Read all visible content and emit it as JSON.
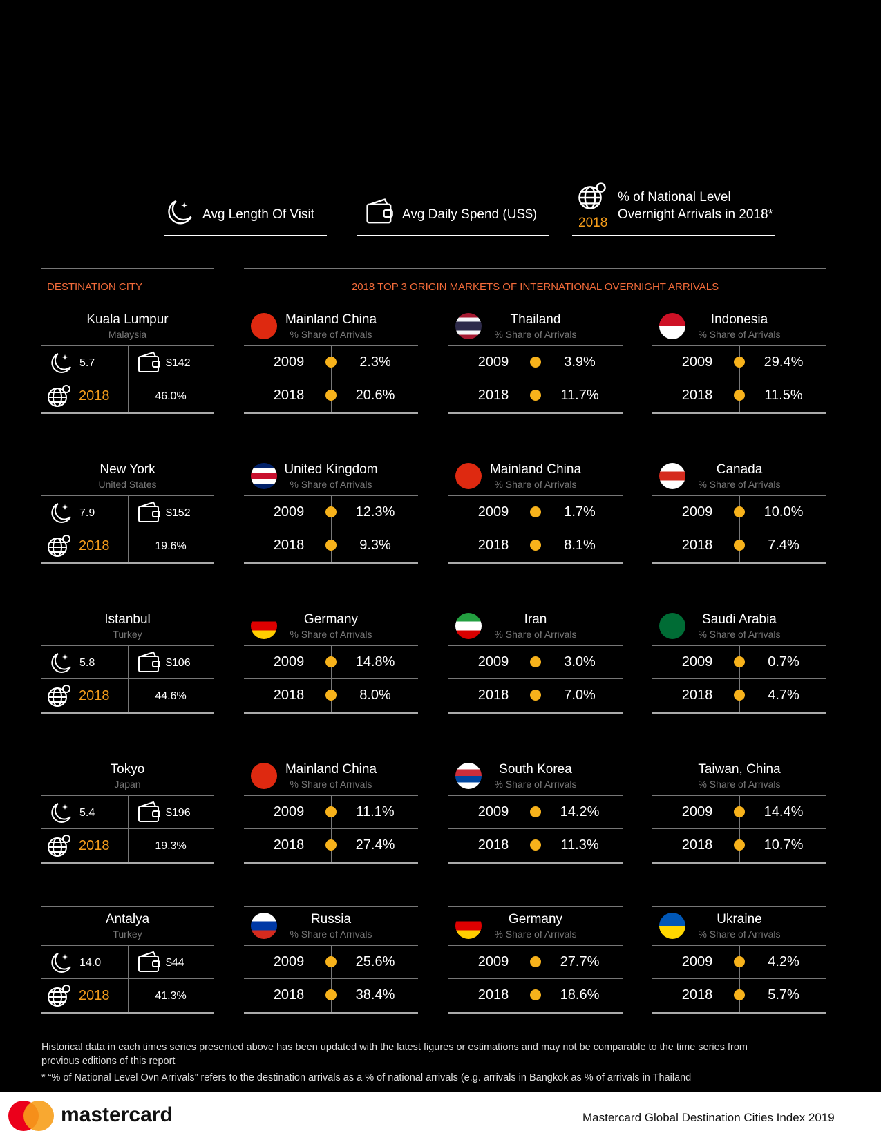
{
  "legend": {
    "items": [
      {
        "label": "Avg Length Of Visit"
      },
      {
        "label": "Avg Daily Spend (US$)"
      },
      {
        "year": "2018",
        "lines": [
          "% of National Level",
          "Overnight Arrivals in 2018*"
        ]
      }
    ]
  },
  "headers": {
    "destination": "DESTINATION CITY",
    "markets": "2018 TOP 3 ORIGIN MARKETS OF INTERNATIONAL OVERNIGHT ARRIVALS"
  },
  "cities": [
    {
      "name": "Kuala Lumpur",
      "country": "Malaysia",
      "length": "5.7",
      "spend": "$142",
      "year": "2018",
      "share": "46.0%",
      "markets": [
        {
          "name": "Mainland China",
          "subtitle": "% Share of Arrivals",
          "flag": [
            "#de2910"
          ],
          "rows": [
            {
              "year": "2009",
              "value": "2.3%"
            },
            {
              "year": "2018",
              "value": "20.6%"
            }
          ]
        },
        {
          "name": "Thailand",
          "subtitle": "% Share of Arrivals",
          "flag": [
            "#a51931",
            "#f4f5f8",
            "#2d2a4a",
            "#2d2a4a",
            "#f4f5f8",
            "#a51931"
          ],
          "rows": [
            {
              "year": "2009",
              "value": "3.9%"
            },
            {
              "year": "2018",
              "value": "11.7%"
            }
          ]
        },
        {
          "name": "Indonesia",
          "subtitle": "% Share of Arrivals",
          "flag": [
            "#ce1126",
            "#ffffff"
          ],
          "rows": [
            {
              "year": "2009",
              "value": "29.4%"
            },
            {
              "year": "2018",
              "value": "11.5%"
            }
          ]
        }
      ]
    },
    {
      "name": "New York",
      "country": "United States",
      "length": "7.9",
      "spend": "$152",
      "year": "2018",
      "share": "19.6%",
      "markets": [
        {
          "name": "United Kingdom",
          "subtitle": "% Share of Arrivals",
          "flag": [
            "#012169",
            "#ffffff",
            "#c8102e",
            "#ffffff",
            "#012169"
          ],
          "rows": [
            {
              "year": "2009",
              "value": "12.3%"
            },
            {
              "year": "2018",
              "value": "9.3%"
            }
          ]
        },
        {
          "name": "Mainland China",
          "subtitle": "% Share of Arrivals",
          "flag": [
            "#de2910"
          ],
          "rows": [
            {
              "year": "2009",
              "value": "1.7%"
            },
            {
              "year": "2018",
              "value": "8.1%"
            }
          ]
        },
        {
          "name": "Canada",
          "subtitle": "% Share of Arrivals",
          "flag": [
            "#ffffff",
            "#d52b1e",
            "#ffffff"
          ],
          "rows": [
            {
              "year": "2009",
              "value": "10.0%"
            },
            {
              "year": "2018",
              "value": "7.4%"
            }
          ]
        }
      ]
    },
    {
      "name": "Istanbul",
      "country": "Turkey",
      "length": "5.8",
      "spend": "$106",
      "year": "2018",
      "share": "44.6%",
      "markets": [
        {
          "name": "Germany",
          "subtitle": "% Share of Arrivals",
          "flag": [
            "#000000",
            "#dd0000",
            "#ffce00"
          ],
          "rows": [
            {
              "year": "2009",
              "value": "14.8%"
            },
            {
              "year": "2018",
              "value": "8.0%"
            }
          ]
        },
        {
          "name": "Iran",
          "subtitle": "% Share of Arrivals",
          "flag": [
            "#239f40",
            "#ffffff",
            "#da0000"
          ],
          "rows": [
            {
              "year": "2009",
              "value": "3.0%"
            },
            {
              "year": "2018",
              "value": "7.0%"
            }
          ]
        },
        {
          "name": "Saudi Arabia",
          "subtitle": "% Share of Arrivals",
          "flag": [
            "#006c35"
          ],
          "rows": [
            {
              "year": "2009",
              "value": "0.7%"
            },
            {
              "year": "2018",
              "value": "4.7%"
            }
          ]
        }
      ]
    },
    {
      "name": "Tokyo",
      "country": "Japan",
      "length": "5.4",
      "spend": "$196",
      "year": "2018",
      "share": "19.3%",
      "markets": [
        {
          "name": "Mainland China",
          "subtitle": "% Share of Arrivals",
          "flag": [
            "#de2910"
          ],
          "rows": [
            {
              "year": "2009",
              "value": "11.1%"
            },
            {
              "year": "2018",
              "value": "27.4%"
            }
          ]
        },
        {
          "name": "South Korea",
          "subtitle": "% Share of Arrivals",
          "flag": [
            "#ffffff",
            "#cd2e3a",
            "#0047a0",
            "#ffffff"
          ],
          "rows": [
            {
              "year": "2009",
              "value": "14.2%"
            },
            {
              "year": "2018",
              "value": "11.3%"
            }
          ]
        },
        {
          "name": "Taiwan, China",
          "subtitle": "% Share of Arrivals",
          "rows": [
            {
              "year": "2009",
              "value": "14.4%"
            },
            {
              "year": "2018",
              "value": "10.7%"
            }
          ]
        }
      ]
    },
    {
      "name": "Antalya",
      "country": "Turkey",
      "length": "14.0",
      "spend": "$44",
      "year": "2018",
      "share": "41.3%",
      "markets": [
        {
          "name": "Russia",
          "subtitle": "% Share of Arrivals",
          "flag": [
            "#ffffff",
            "#0039a6",
            "#d52b1e"
          ],
          "rows": [
            {
              "year": "2009",
              "value": "25.6%"
            },
            {
              "year": "2018",
              "value": "38.4%"
            }
          ]
        },
        {
          "name": "Germany",
          "subtitle": "% Share of Arrivals",
          "flag": [
            "#000000",
            "#dd0000",
            "#ffce00"
          ],
          "rows": [
            {
              "year": "2009",
              "value": "27.7%"
            },
            {
              "year": "2018",
              "value": "18.6%"
            }
          ]
        },
        {
          "name": "Ukraine",
          "subtitle": "% Share of Arrivals",
          "flag": [
            "#0057b7",
            "#ffd700"
          ],
          "rows": [
            {
              "year": "2009",
              "value": "4.2%"
            },
            {
              "year": "2018",
              "value": "5.7%"
            }
          ]
        }
      ]
    }
  ],
  "footnotes": [
    "Historical data in each times series presented above has been updated with the latest figures or estimations and may not be comparable to the time series from previous editions of this report",
    "* “% of National Level Ovn Arrivals” refers to the destination arrivals as a % of national arrivals  (e.g. arrivals  in Bangkok as % of arrivals in Thailand"
  ],
  "footer": {
    "brand": "mastercard",
    "report": "Mastercard Global Destination Cities Index 2019"
  }
}
